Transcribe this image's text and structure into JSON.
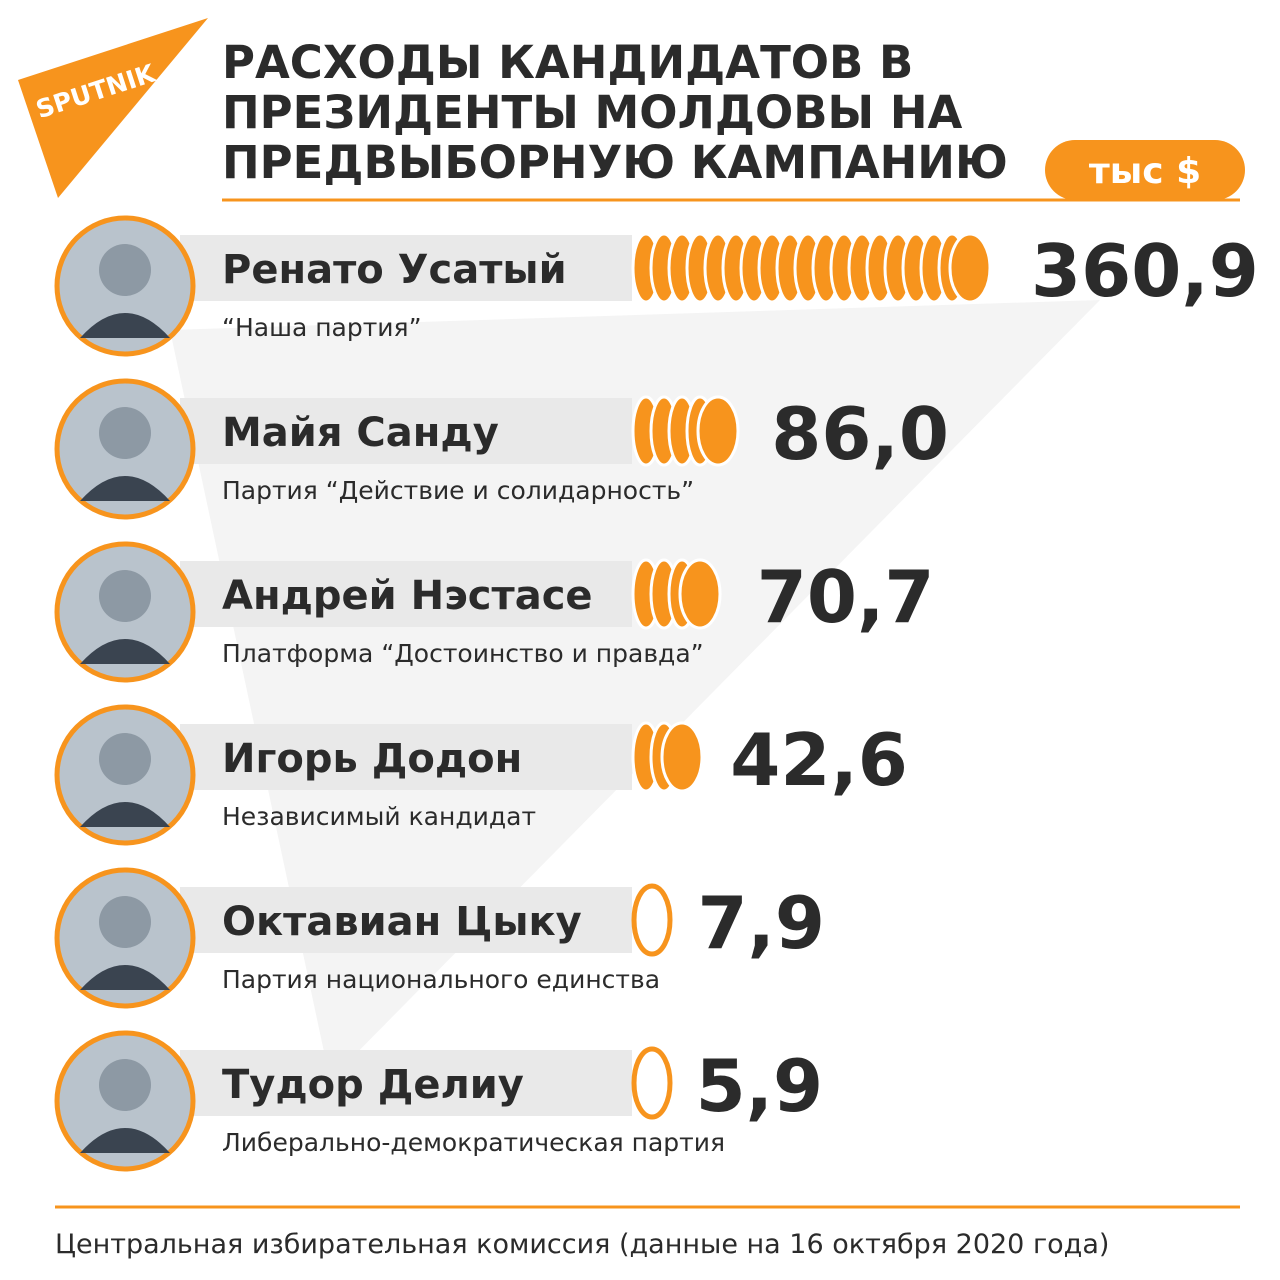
{
  "chart_data": {
    "type": "bar",
    "logo": "SPUTNIK",
    "title": "РАСХОДЫ КАНДИДАТОВ В ПРЕЗИДЕНТЫ МОЛДОВЫ НА ПРЕДВЫБОРНУЮ КАМПАНИЮ",
    "unit": "тыс $",
    "categories": [
      "Ренато Усатый",
      "Майя Санду",
      "Андрей Нэстасе",
      "Игорь Додон",
      "Октавиан Цыку",
      "Тудор Делиу"
    ],
    "parties": [
      "“Наша партия”",
      "Партия “Действие и солидарность”",
      "Платформа “Достоинство и правда”",
      "Независимый кандидат",
      "Партия национального единства",
      "Либерально-демократическая партия"
    ],
    "values": [
      360.9,
      86.0,
      70.7,
      42.6,
      7.9,
      5.9
    ],
    "value_labels": [
      "360,9",
      "86,0",
      "70,7",
      "42,6",
      "7,9",
      "5,9"
    ],
    "color": "#f7941d",
    "source": "Центральная избирательная комиссия (данные на 16 октября 2020 года)"
  }
}
